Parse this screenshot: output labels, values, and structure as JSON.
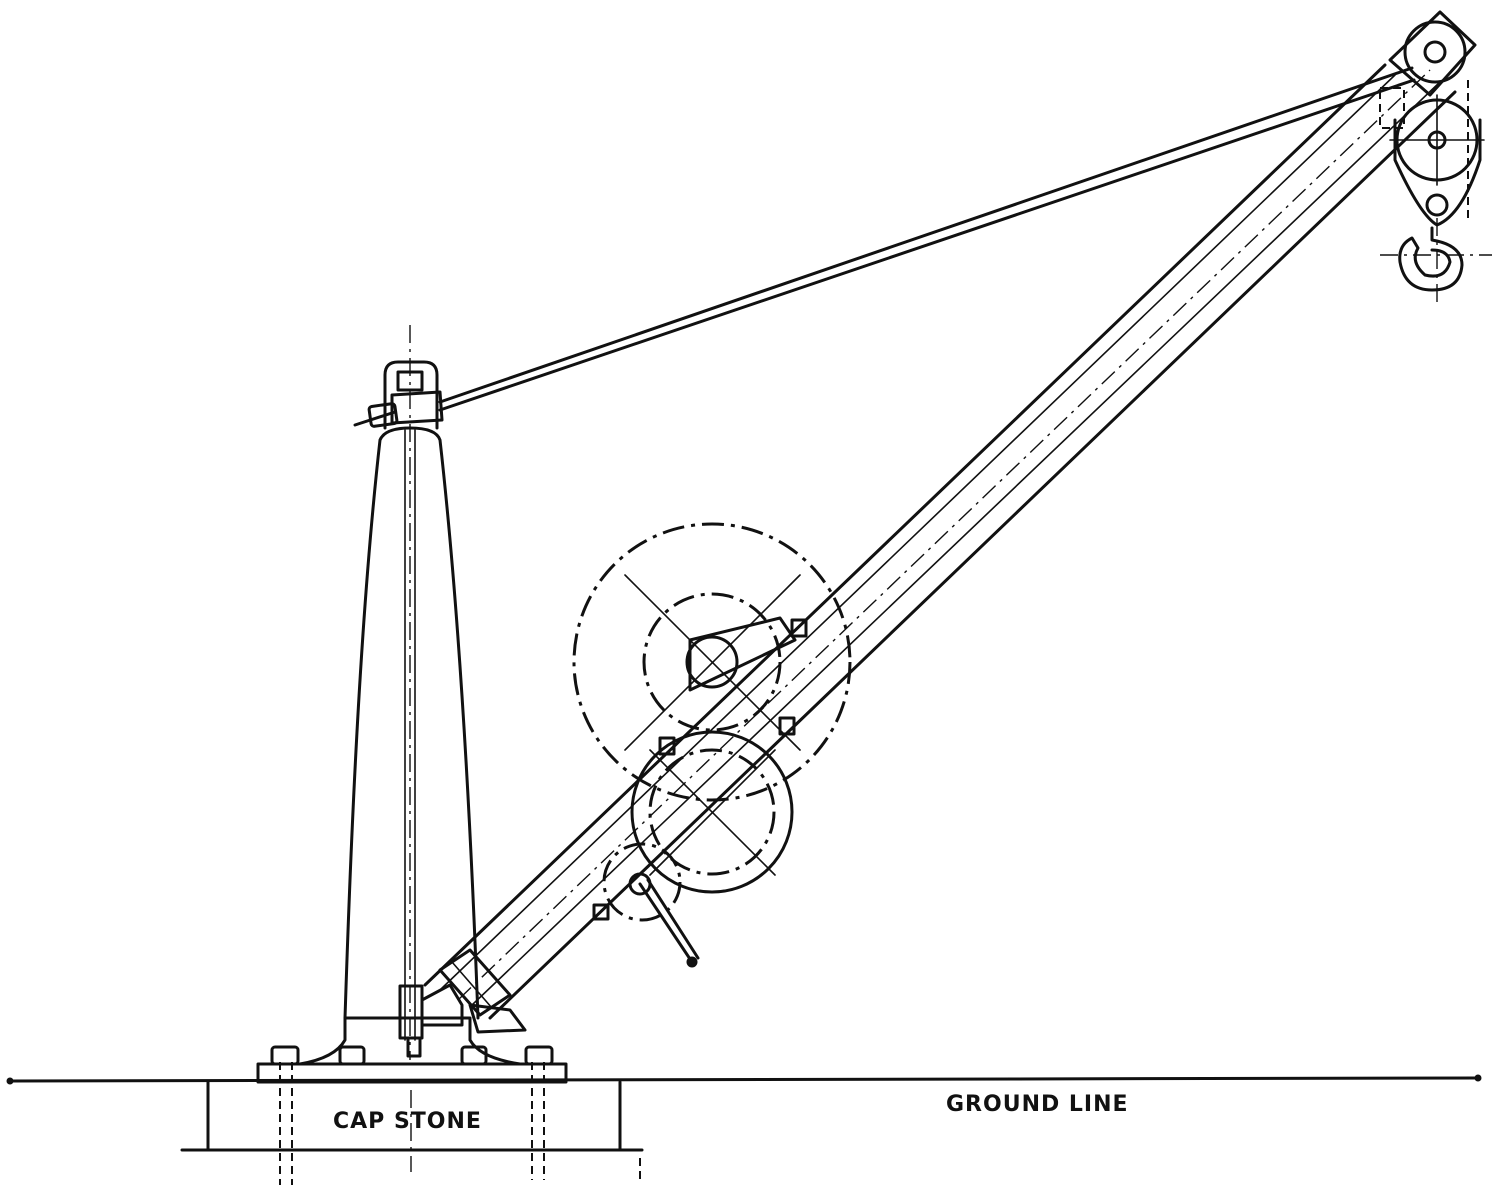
{
  "labels": {
    "cap_stone": "CAP STONE",
    "ground_line": "GROUND LINE"
  },
  "colors": {
    "ink": "#111111",
    "paper": "#ffffff"
  }
}
